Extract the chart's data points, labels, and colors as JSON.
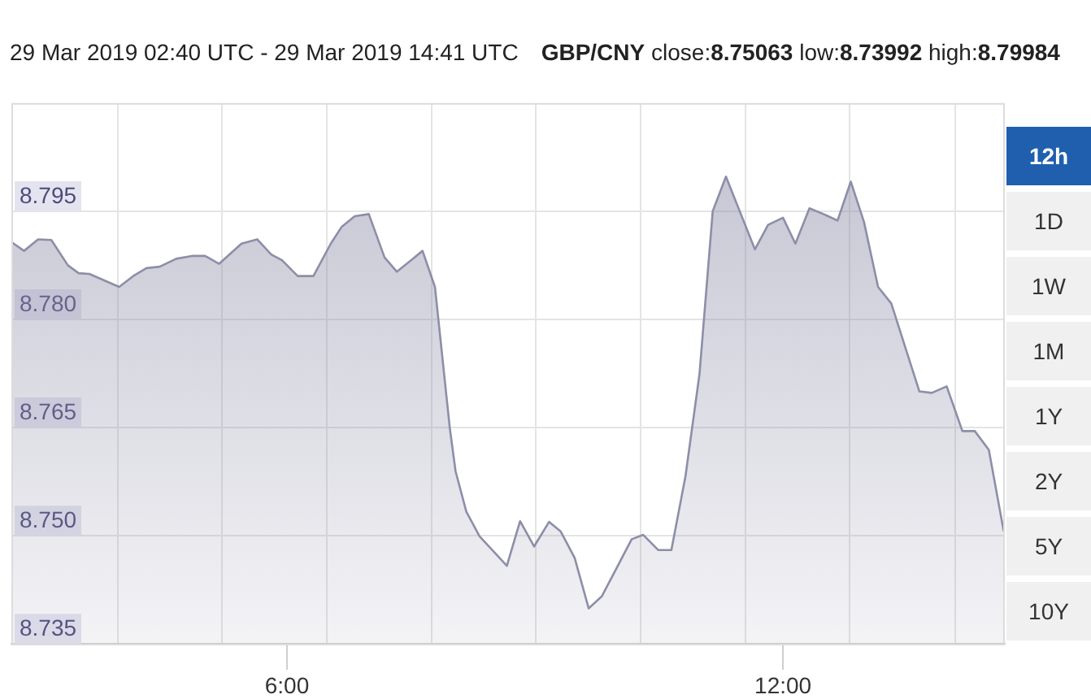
{
  "chart_data": {
    "type": "area",
    "title": "29 Mar 2019 02:40 UTC - 29 Mar 2019 14:41 UTC",
    "subtitle": "GBP/CNY close:8.75063 low:8.73992 high:8.79984",
    "annotations": [
      "12h",
      "1D",
      "1W",
      "1M",
      "1Y",
      "2Y",
      "5Y",
      "10Y"
    ],
    "x": [
      2.67,
      2.82,
      2.99,
      3.15,
      3.35,
      3.48,
      3.61,
      3.97,
      4.14,
      4.3,
      4.46,
      4.66,
      4.86,
      5.01,
      5.18,
      5.45,
      5.64,
      5.81,
      5.94,
      6.13,
      6.32,
      6.53,
      6.66,
      6.82,
      6.99,
      7.18,
      7.33,
      7.64,
      7.79,
      7.97,
      8.04,
      8.17,
      8.33,
      8.66,
      8.82,
      8.99,
      9.17,
      9.31,
      9.48,
      9.65,
      9.81,
      10.17,
      10.31,
      10.49,
      10.65,
      10.82,
      10.99,
      11.15,
      11.31,
      11.66,
      11.82,
      12.0,
      12.15,
      12.32,
      12.49,
      12.66,
      12.82,
      12.98,
      13.15,
      13.31,
      13.65,
      13.8,
      13.98,
      14.17,
      14.32,
      14.49,
      14.67
    ],
    "series": [
      {
        "color": "#8d8ea8",
        "values": [
          8.7907,
          8.7895,
          8.7911,
          8.791,
          8.7875,
          8.7864,
          8.7863,
          8.7845,
          8.786,
          8.7871,
          8.7873,
          8.7884,
          8.7888,
          8.7888,
          8.7877,
          8.7905,
          8.7911,
          8.789,
          8.7882,
          8.786,
          8.786,
          8.7905,
          8.7928,
          8.7943,
          8.7946,
          8.7886,
          8.7866,
          8.7895,
          8.7845,
          8.7649,
          8.7589,
          8.7533,
          8.7499,
          8.7458,
          8.752,
          8.7485,
          8.7519,
          8.7506,
          8.7469,
          8.7399,
          8.7416,
          8.7495,
          8.7501,
          8.748,
          8.748,
          8.7582,
          8.7724,
          8.795,
          8.7998,
          8.7897,
          8.7931,
          8.7941,
          8.7905,
          8.7954,
          8.7946,
          8.7937,
          8.7991,
          8.7935,
          8.7845,
          8.7822,
          8.77,
          8.7698,
          8.7707,
          8.7645,
          8.7645,
          8.7619,
          8.7506
        ]
      }
    ],
    "xlim": [
      2.6667,
      14.6833
    ],
    "xticks": [
      {
        "value": 3.95,
        "label": null
      },
      {
        "value": 5.21,
        "label": null
      },
      {
        "value": 6,
        "label": "6:00"
      },
      {
        "value": 6.48,
        "label": null
      },
      {
        "value": 7.75,
        "label": null
      },
      {
        "value": 9.01,
        "label": null
      },
      {
        "value": 10.28,
        "label": null
      },
      {
        "value": 11.55,
        "label": null
      },
      {
        "value": 12,
        "label": "12:00"
      },
      {
        "value": 12.81,
        "label": null
      },
      {
        "value": 14.08,
        "label": null
      }
    ],
    "ylim": [
      8.735,
      8.81
    ],
    "yticks": [
      {
        "value": 8.735,
        "label": "8.735"
      },
      {
        "value": 8.75,
        "label": "8.750"
      },
      {
        "value": 8.765,
        "label": "8.765"
      },
      {
        "value": 8.78,
        "label": "8.780"
      },
      {
        "value": 8.795,
        "label": "8.795"
      }
    ],
    "grid": true,
    "marker": "none"
  }
}
